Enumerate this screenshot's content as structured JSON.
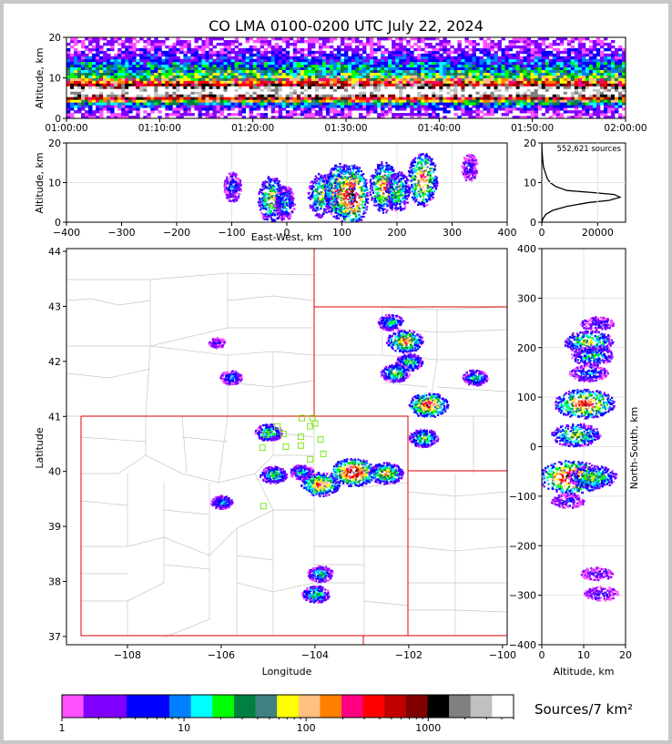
{
  "chart_data": [
    {
      "type": "heatmap",
      "panel": "altitude-time",
      "title": "CO LMA 0100-0200 UTC July 22, 2024",
      "ylabel": "Altitude, km",
      "xlim": [
        "01:00:00",
        "02:00:00"
      ],
      "ylim": [
        0,
        20
      ],
      "xticks": [
        "01:00:00",
        "01:10:00",
        "01:20:00",
        "01:30:00",
        "01:40:00",
        "01:50:00",
        "02:00:00"
      ],
      "yticks": [
        "0",
        "10",
        "20"
      ]
    },
    {
      "type": "heatmap",
      "panel": "altitude-eastwest",
      "xlabel": "East-West, km",
      "ylabel": "Altitude, km",
      "xlim": [
        -400,
        400
      ],
      "ylim": [
        0,
        20
      ],
      "xticks": [
        "−400",
        "−300",
        "−200",
        "−100",
        "0",
        "100",
        "200",
        "300",
        "400"
      ],
      "yticks": [
        "0",
        "10",
        "20"
      ],
      "cells": [
        {
          "x": -100,
          "z": 9,
          "level": 0.25
        },
        {
          "x": -30,
          "z": 6,
          "level": 0.6
        },
        {
          "x": -5,
          "z": 5,
          "level": 0.35
        },
        {
          "x": 60,
          "z": 7,
          "level": 0.55
        },
        {
          "x": 95,
          "z": 8,
          "level": 0.8
        },
        {
          "x": 115,
          "z": 7,
          "level": 0.95
        },
        {
          "x": 175,
          "z": 9,
          "level": 0.7
        },
        {
          "x": 200,
          "z": 8,
          "level": 0.5
        },
        {
          "x": 245,
          "z": 11,
          "level": 0.75
        },
        {
          "x": 330,
          "z": 14,
          "level": 0.2
        }
      ]
    },
    {
      "type": "line",
      "panel": "source-histogram",
      "annotation": "552,621 sources",
      "xlim": [
        0,
        30000
      ],
      "ylim": [
        0,
        20
      ],
      "xticks": [
        "0",
        "20000"
      ],
      "yticks": [
        "0",
        "10",
        "20"
      ],
      "x": [
        0,
        500,
        1500,
        4000,
        9000,
        17000,
        24000,
        28000,
        26000,
        18000,
        9000,
        5000,
        3000,
        2000,
        1500,
        1000,
        600,
        300,
        100,
        0
      ],
      "y": [
        0,
        1,
        2,
        3,
        4,
        5,
        5.5,
        6.3,
        7,
        7.5,
        8,
        9,
        10,
        11,
        12,
        13,
        14,
        16,
        18,
        20
      ]
    },
    {
      "type": "heatmap",
      "panel": "plan-view",
      "xlabel": "Longitude",
      "ylabel": "Latitude",
      "xlim": [
        -109.3,
        -99.9
      ],
      "ylim": [
        36.85,
        44.05
      ],
      "xticks": [
        "−108",
        "−106",
        "−104",
        "−102",
        "−100"
      ],
      "yticks": [
        "37",
        "38",
        "39",
        "40",
        "41",
        "42",
        "43",
        "44"
      ],
      "cells": [
        {
          "lon": -103.9,
          "lat": 39.78,
          "level": 0.75
        },
        {
          "lon": -103.2,
          "lat": 40.0,
          "level": 0.95
        },
        {
          "lon": -102.5,
          "lat": 39.98,
          "level": 0.65
        },
        {
          "lon": -101.6,
          "lat": 41.22,
          "level": 0.8
        },
        {
          "lon": -101.7,
          "lat": 40.62,
          "level": 0.5
        },
        {
          "lon": -102.1,
          "lat": 42.38,
          "level": 0.7
        },
        {
          "lon": -102.0,
          "lat": 42.0,
          "level": 0.45
        },
        {
          "lon": -102.3,
          "lat": 41.8,
          "level": 0.5
        },
        {
          "lon": -102.4,
          "lat": 42.72,
          "level": 0.4
        },
        {
          "lon": -100.6,
          "lat": 41.72,
          "level": 0.4
        },
        {
          "lon": -105.0,
          "lat": 40.72,
          "level": 0.45
        },
        {
          "lon": -104.9,
          "lat": 39.95,
          "level": 0.45
        },
        {
          "lon": -104.3,
          "lat": 40.0,
          "level": 0.35
        },
        {
          "lon": -103.9,
          "lat": 38.15,
          "level": 0.4
        },
        {
          "lon": -104.0,
          "lat": 37.78,
          "level": 0.45
        },
        {
          "lon": -106.0,
          "lat": 39.45,
          "level": 0.3
        },
        {
          "lon": -105.8,
          "lat": 41.72,
          "level": 0.3
        },
        {
          "lon": -106.1,
          "lat": 42.35,
          "level": 0.15
        }
      ],
      "stations": [
        {
          "lon": -105.05,
          "lat": 40.67
        },
        {
          "lon": -104.8,
          "lat": 40.82
        },
        {
          "lon": -104.67,
          "lat": 40.68
        },
        {
          "lon": -104.28,
          "lat": 40.97
        },
        {
          "lon": -104.1,
          "lat": 40.82
        },
        {
          "lon": -104.0,
          "lat": 40.87
        },
        {
          "lon": -104.3,
          "lat": 40.63
        },
        {
          "lon": -104.3,
          "lat": 40.47
        },
        {
          "lon": -104.62,
          "lat": 40.45
        },
        {
          "lon": -105.12,
          "lat": 40.43
        },
        {
          "lon": -103.88,
          "lat": 40.58
        },
        {
          "lon": -103.82,
          "lat": 40.32
        },
        {
          "lon": -104.1,
          "lat": 40.22
        },
        {
          "lon": -105.1,
          "lat": 39.37
        },
        {
          "lon": -104.05,
          "lat": 40.97
        }
      ]
    },
    {
      "type": "heatmap",
      "panel": "northsouth-altitude",
      "xlabel": "Altitude, km",
      "ylabel": "North-South, km",
      "xlim": [
        0,
        20
      ],
      "ylim": [
        -400,
        400
      ],
      "xticks": [
        "0",
        "10",
        "20"
      ],
      "yticks": [
        "−400",
        "−300",
        "−200",
        "−100",
        "0",
        "100",
        "200",
        "300",
        "400"
      ],
      "cells": [
        {
          "z": 7,
          "ns": -60,
          "level": 0.95
        },
        {
          "z": 12,
          "ns": -60,
          "level": 0.55
        },
        {
          "z": 10,
          "ns": 88,
          "level": 0.8
        },
        {
          "z": 8,
          "ns": 25,
          "level": 0.55
        },
        {
          "z": 11,
          "ns": 213,
          "level": 0.55
        },
        {
          "z": 12,
          "ns": 185,
          "level": 0.4
        },
        {
          "z": 11,
          "ns": 150,
          "level": 0.3
        },
        {
          "z": 13,
          "ns": 250,
          "level": 0.2
        },
        {
          "z": 14,
          "ns": -295,
          "level": 0.2
        },
        {
          "z": 13,
          "ns": -255,
          "level": 0.15
        },
        {
          "z": 6,
          "ns": -108,
          "level": 0.2
        }
      ]
    },
    {
      "type": "colorbar",
      "panel": "colorbar",
      "label": "Sources/7 km²",
      "scale": "log",
      "range": [
        1,
        5000
      ],
      "ticks": [
        "1",
        "10",
        "100",
        "1000"
      ],
      "colors": [
        "#ff50ff",
        "#8000ff",
        "#8000ff",
        "#0000ff",
        "#0000ff",
        "#0080ff",
        "#00ffff",
        "#00ff00",
        "#008040",
        "#408080",
        "#ffff00",
        "#ffc080",
        "#ff8000",
        "#ff0080",
        "#ff0000",
        "#c00000",
        "#800000",
        "#000000",
        "#808080",
        "#c0c0c0",
        "#ffffff"
      ]
    }
  ]
}
